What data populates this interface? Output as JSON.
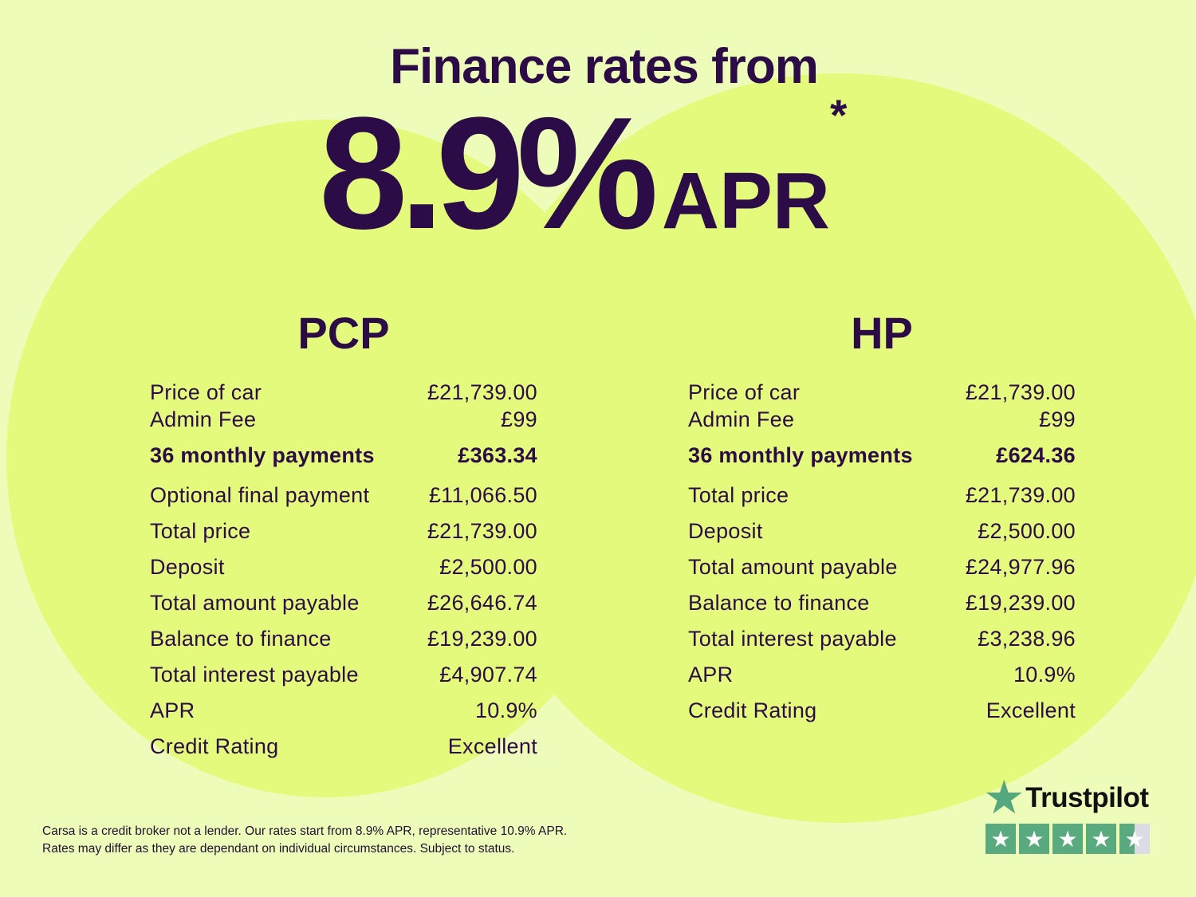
{
  "headline": "Finance rates from",
  "rate": {
    "value": "8.9%",
    "suffix": "APR",
    "asterisk": "*"
  },
  "pcp": {
    "title": "PCP",
    "rows": [
      {
        "label": "Price of car",
        "value": "£21,739.00"
      },
      {
        "label": "Admin Fee",
        "value": "£99"
      },
      {
        "label": "36 monthly payments",
        "value": "£363.34"
      },
      {
        "label": "Optional final payment",
        "value": "£11,066.50"
      },
      {
        "label": "Total price",
        "value": "£21,739.00"
      },
      {
        "label": "Deposit",
        "value": "£2,500.00"
      },
      {
        "label": "Total amount payable",
        "value": "£26,646.74"
      },
      {
        "label": "Balance to finance",
        "value": "£19,239.00"
      },
      {
        "label": "Total interest payable",
        "value": "£4,907.74"
      },
      {
        "label": "APR",
        "value": "10.9%"
      },
      {
        "label": "Credit Rating",
        "value": "Excellent"
      }
    ]
  },
  "hp": {
    "title": "HP",
    "rows": [
      {
        "label": "Price of car",
        "value": "£21,739.00"
      },
      {
        "label": "Admin Fee",
        "value": "£99"
      },
      {
        "label": "36 monthly payments",
        "value": "£624.36"
      },
      {
        "label": "Total price",
        "value": "£21,739.00"
      },
      {
        "label": "Deposit",
        "value": "£2,500.00"
      },
      {
        "label": "Total amount payable",
        "value": "£24,977.96"
      },
      {
        "label": "Balance to finance",
        "value": "£19,239.00"
      },
      {
        "label": "Total interest payable",
        "value": "£3,238.96"
      },
      {
        "label": "APR",
        "value": "10.9%"
      },
      {
        "label": "Credit Rating",
        "value": "Excellent"
      }
    ]
  },
  "disclaimer": [
    "Carsa is a credit broker not a lender. Our rates start from 8.9% APR, representative 10.9% APR.",
    "Rates may differ as they are dependant on individual circumstances. Subject to status."
  ],
  "trustpilot": {
    "name": "Trustpilot",
    "rating_stars": 4.5,
    "icon": "star-icon",
    "color": "#5aaa80"
  },
  "colors": {
    "background": "#eefcba",
    "circle": "#e4fa7c",
    "text": "#2c0c47"
  }
}
